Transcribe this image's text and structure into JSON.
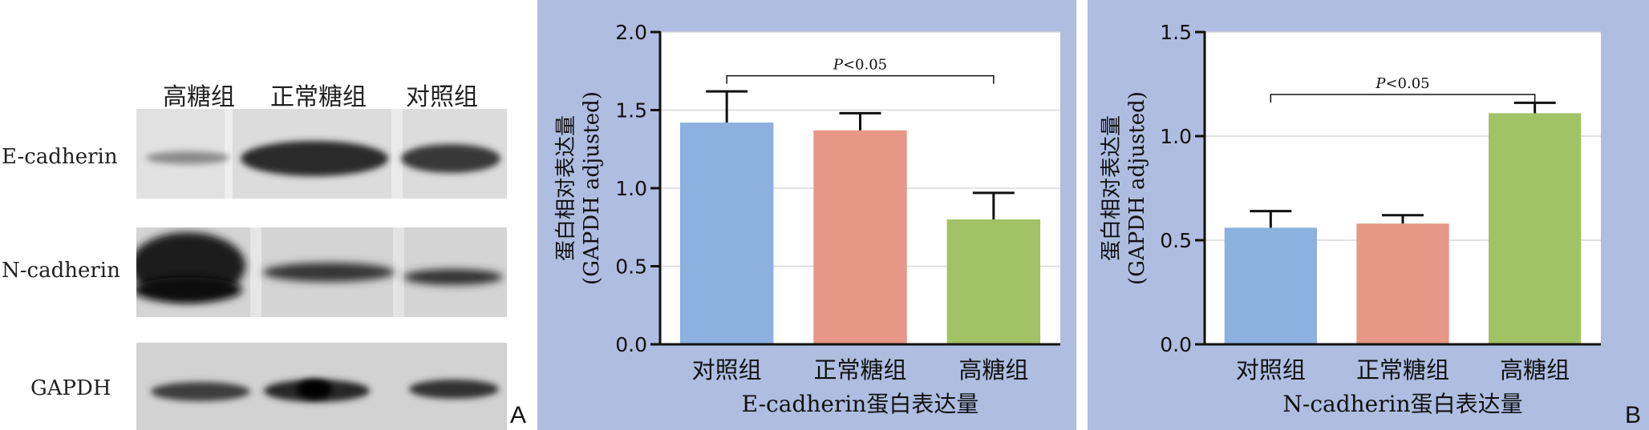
{
  "blot": {
    "lane_headers": [
      "高糖组",
      "正常糖组",
      "对照组"
    ],
    "row_labels": [
      "E-cadherin",
      "N-cadherin",
      "GAPDH"
    ],
    "panel_letter": "A"
  },
  "panel_letter_b": "B",
  "chart_data": [
    {
      "type": "bar",
      "categories": [
        "对照组",
        "正常糖组",
        "高糖组"
      ],
      "values": [
        1.42,
        1.37,
        0.8
      ],
      "errors": [
        0.2,
        0.11,
        0.17
      ],
      "colors": [
        "#8cb1e0",
        "#e69785",
        "#a2c266"
      ],
      "title": "",
      "xlabel": "E-cadherin蛋白表达量",
      "ylabel_line1": "蛋白相对表达量",
      "ylabel_line2": "(GAPDH adjusted)",
      "ylim": [
        0,
        2.0
      ],
      "yticks": [
        "0.0",
        "0.5",
        "1.0",
        "1.5",
        "2.0"
      ],
      "ytick_values": [
        0,
        0.5,
        1.0,
        1.5,
        2.0
      ],
      "grid": true,
      "annotation": {
        "text": "P<0.05",
        "from": 0,
        "to": 2,
        "level": 1.72
      }
    },
    {
      "type": "bar",
      "categories": [
        "对照组",
        "正常糖组",
        "高糖组"
      ],
      "values": [
        0.56,
        0.58,
        1.11
      ],
      "errors": [
        0.08,
        0.04,
        0.05
      ],
      "colors": [
        "#8cb1e0",
        "#e69785",
        "#a2c266"
      ],
      "title": "",
      "xlabel": "N-cadherin蛋白表达量",
      "ylabel_line1": "蛋白相对表达量",
      "ylabel_line2": "(GAPDH adjusted)",
      "ylim": [
        0,
        1.5
      ],
      "yticks": [
        "0.0",
        "0.5",
        "1.0",
        "1.5"
      ],
      "ytick_values": [
        0,
        0.5,
        1.0,
        1.5
      ],
      "grid": true,
      "annotation": {
        "text": "P<0.05",
        "from": 0,
        "to": 2,
        "level": 1.2
      }
    }
  ]
}
